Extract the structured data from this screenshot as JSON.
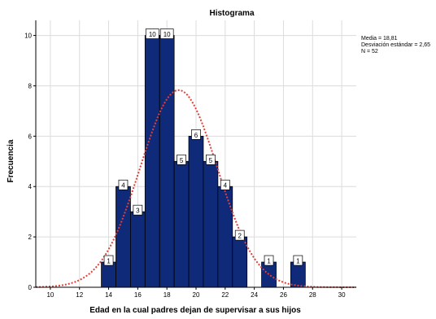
{
  "chart_data": {
    "type": "bar",
    "title": "Histograma",
    "xlabel": "Edad en la cual padres dejan de supervisar a sus hijos",
    "ylabel": "Frecuencia",
    "x_ticks": [
      10,
      12,
      14,
      16,
      18,
      20,
      22,
      24,
      26,
      28,
      30
    ],
    "y_ticks": [
      0,
      2,
      4,
      6,
      8,
      10
    ],
    "xlim": [
      9,
      31
    ],
    "ylim": [
      0,
      10.6
    ],
    "bin_width": 1,
    "bins": [
      {
        "x": 14,
        "value": 1
      },
      {
        "x": 15,
        "value": 4
      },
      {
        "x": 16,
        "value": 3
      },
      {
        "x": 17,
        "value": 10
      },
      {
        "x": 18,
        "value": 10
      },
      {
        "x": 19,
        "value": 5
      },
      {
        "x": 20,
        "value": 6
      },
      {
        "x": 21,
        "value": 5
      },
      {
        "x": 22,
        "value": 4
      },
      {
        "x": 23,
        "value": 2
      },
      {
        "x": 25,
        "value": 1
      },
      {
        "x": 27,
        "value": 1
      }
    ],
    "normal_curve": {
      "mean": 18.81,
      "sd": 2.65,
      "n": 52
    },
    "stats_text": [
      "Media = 18,81",
      "Desviación estándar = 2,65",
      "N = 52"
    ],
    "grid": true,
    "colors": {
      "bar": "#0f2a78",
      "bar_edge": "#000000",
      "curve": "#e0403a",
      "grid": "#dcdcdc"
    }
  }
}
